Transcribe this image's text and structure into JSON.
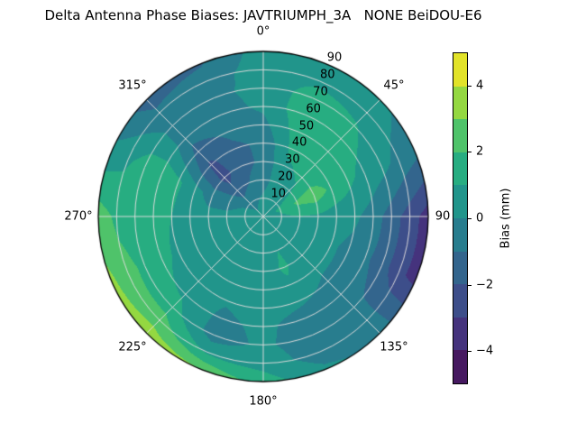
{
  "title": "Delta Antenna Phase Biases: JAVTRIUMPH_3A   NONE BeiDOU-E6",
  "chart_data": {
    "type": "heatmap",
    "projection": "polar",
    "title": "Delta Antenna Phase Biases: JAVTRIUMPH_3A   NONE BeiDOU-E6",
    "colorbar_label": "Bias (mm)",
    "units": "mm",
    "theta_deg": [
      0,
      45,
      90,
      135,
      180,
      225,
      270,
      315
    ],
    "theta_labels": [
      "0°",
      "45°",
      "90",
      "135°",
      "180°",
      "225°",
      "270°",
      "315°"
    ],
    "radial_ticks": [
      10,
      20,
      30,
      40,
      50,
      60,
      70,
      80,
      90
    ],
    "radial_range": [
      0,
      90
    ],
    "grid_on": true,
    "levels": [
      -5,
      -4,
      -3,
      -2,
      -1,
      0,
      1,
      2,
      3,
      4,
      5
    ],
    "colors": [
      "#461960",
      "#45337d",
      "#3d4e8a",
      "#33658d",
      "#287d8e",
      "#21958b",
      "#27ad81",
      "#4fc36a",
      "#94d841",
      "#e2e329"
    ],
    "colorbar_ticks": [
      {
        "value": 4,
        "label": "4"
      },
      {
        "value": 2,
        "label": "2"
      },
      {
        "value": 0,
        "label": "0"
      },
      {
        "value": -2,
        "label": "−2"
      },
      {
        "value": -4,
        "label": "−4"
      }
    ],
    "grid": {
      "azimuth_deg": [
        0,
        22.5,
        45,
        67.5,
        90,
        112.5,
        135,
        157.5,
        180,
        202.5,
        225,
        247.5,
        270,
        292.5,
        315,
        337.5
      ],
      "zenith_deg": [
        0,
        10,
        20,
        30,
        40,
        50,
        60,
        70,
        80,
        90
      ],
      "bias_mm": [
        [
          0.5,
          0.2,
          -0.5,
          -0.8,
          -0.8,
          -0.3,
          0.2,
          0.4,
          0.5,
          0.5
        ],
        [
          0.5,
          0.5,
          0.6,
          0.8,
          1.2,
          1.5,
          1.7,
          1.4,
          0.8,
          0.5
        ],
        [
          0.5,
          0.6,
          0.8,
          1.2,
          1.5,
          1.6,
          1.4,
          1.1,
          0.6,
          0.3
        ],
        [
          0.5,
          1.2,
          2.2,
          2.6,
          1.8,
          1.2,
          0.7,
          0.3,
          -0.3,
          -0.8
        ],
        [
          0.5,
          0.8,
          1.0,
          0.8,
          0.4,
          0.2,
          -0.5,
          -1.5,
          -2.5,
          -3.5
        ],
        [
          0.5,
          0.5,
          0.4,
          0.3,
          0.2,
          -0.3,
          -0.8,
          -1.5,
          -2.8,
          -3.3
        ],
        [
          0.5,
          0.4,
          0.3,
          0.3,
          0.2,
          -0.2,
          -0.5,
          -0.8,
          -0.5,
          -0.3
        ],
        [
          0.5,
          0.6,
          1.0,
          1.2,
          0.8,
          0.2,
          -0.4,
          -0.6,
          -0.5,
          0.2
        ],
        [
          0.5,
          0.5,
          0.5,
          0.4,
          0.4,
          0.3,
          0.2,
          0.2,
          0.6,
          1.5
        ],
        [
          0.5,
          0.4,
          0.3,
          0.2,
          0.2,
          0.1,
          -0.2,
          -0.5,
          0.8,
          3.0
        ],
        [
          0.4,
          0.3,
          0.2,
          0.2,
          0.2,
          0.4,
          0.8,
          1.5,
          2.5,
          3.6
        ],
        [
          0.4,
          0.3,
          0.2,
          0.2,
          0.3,
          0.8,
          1.3,
          1.8,
          2.3,
          3.2
        ],
        [
          0.5,
          0.3,
          0.2,
          0.3,
          0.6,
          1.0,
          1.4,
          1.6,
          1.8,
          2.5
        ],
        [
          0.5,
          0.1,
          -0.3,
          -0.4,
          0.3,
          1.2,
          1.8,
          1.6,
          0.8,
          0.4
        ],
        [
          0.4,
          -0.5,
          -1.6,
          -2.4,
          -2.2,
          -1.4,
          -0.6,
          -0.4,
          -0.8,
          -1.5
        ],
        [
          0.5,
          -0.2,
          -1.0,
          -1.3,
          -1.2,
          -0.8,
          -0.4,
          -0.3,
          -0.5,
          -1.1
        ]
      ]
    }
  }
}
